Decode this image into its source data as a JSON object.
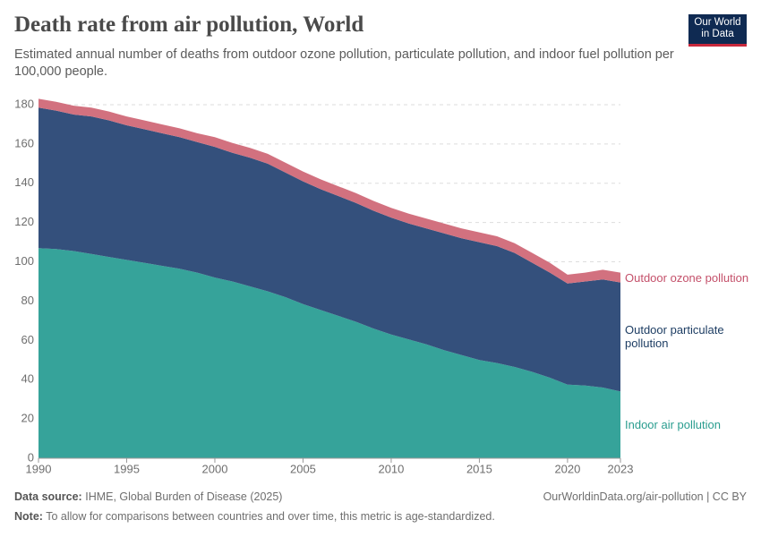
{
  "chart_data": {
    "type": "stacked-area",
    "title": "Death rate from air pollution, World",
    "subtitle": "Estimated annual number of deaths from outdoor ozone pollution, particulate pollution, and indoor fuel pollution per 100,000 people.",
    "logo": [
      "Our World",
      "in Data"
    ],
    "source_label": "Data source:",
    "source": "IHME, Global Burden of Disease (2025)",
    "url": "OurWorldinData.org/air-pollution | CC BY",
    "note_label": "Note:",
    "note": "To allow for comparisons between countries and over time, this metric is age-standardized.",
    "x": [
      1990,
      1991,
      1992,
      1993,
      1994,
      1995,
      1996,
      1997,
      1998,
      1999,
      2000,
      2001,
      2002,
      2003,
      2004,
      2005,
      2006,
      2007,
      2008,
      2009,
      2010,
      2011,
      2012,
      2013,
      2014,
      2015,
      2016,
      2017,
      2018,
      2019,
      2020,
      2021,
      2022,
      2023
    ],
    "xlim": [
      1990,
      2023
    ],
    "xticks": [
      1990,
      1995,
      2000,
      2005,
      2010,
      2015,
      2020,
      2023
    ],
    "ylim": [
      0,
      180
    ],
    "yticks": [
      0,
      20,
      40,
      60,
      80,
      100,
      120,
      140,
      160,
      180
    ],
    "grid": true,
    "series": [
      {
        "name": "Indoor air pollution",
        "color": "#36a39a",
        "label_color": "#2a9d8f",
        "values": [
          107,
          106.5,
          105.5,
          104,
          102.5,
          101,
          99.5,
          98,
          96.5,
          94.5,
          92,
          90,
          87.5,
          85,
          82,
          78.5,
          75.5,
          72.5,
          69.5,
          66,
          63,
          60.5,
          58,
          55,
          52.5,
          50,
          48.5,
          46.5,
          44,
          41,
          37.5,
          37,
          36,
          34
        ]
      },
      {
        "name": "Outdoor particulate pollution",
        "color": "#34507c",
        "label_color": "#1d3d63",
        "values": [
          71.5,
          70.5,
          69.5,
          70,
          69.5,
          68.5,
          68,
          67.5,
          67,
          66.5,
          66.5,
          65.5,
          65.5,
          65,
          63.5,
          62.5,
          61.5,
          61,
          60.5,
          60,
          59.5,
          59,
          59,
          59.5,
          59.5,
          60,
          59.5,
          58,
          55.5,
          53.5,
          51.5,
          53,
          55,
          55.5
        ]
      },
      {
        "name": "Outdoor ozone pollution",
        "color": "#d2717f",
        "label_color": "#c4506a",
        "values": [
          4.5,
          4.5,
          4.5,
          4.5,
          4.5,
          4.5,
          4.5,
          4.5,
          4.5,
          4.5,
          5,
          5,
          5,
          5,
          5,
          5,
          5,
          5,
          5,
          5,
          5,
          5,
          5,
          5,
          5,
          5,
          5,
          5,
          5,
          5,
          4.5,
          4.5,
          5,
          5
        ]
      }
    ]
  }
}
